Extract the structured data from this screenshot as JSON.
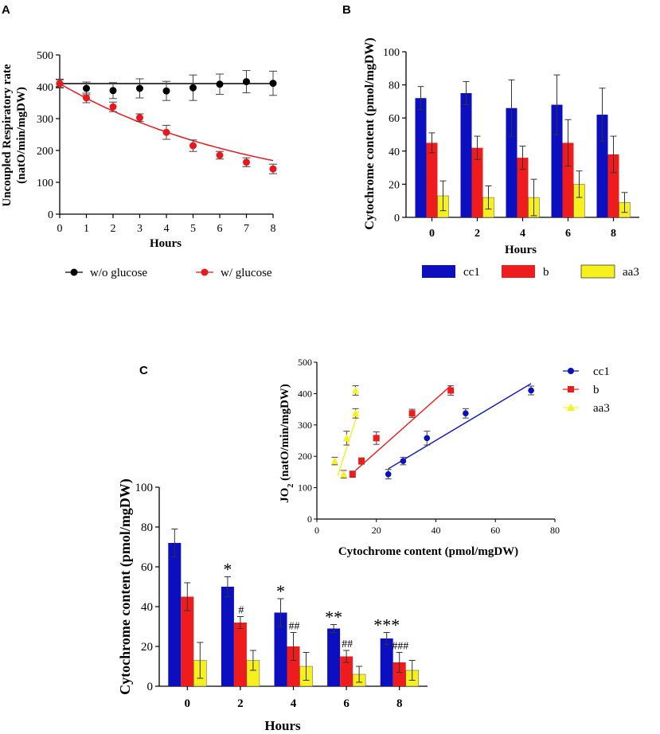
{
  "panels": {
    "a": "A",
    "b": "B",
    "c": "C"
  },
  "chart_data": [
    {
      "id": "A",
      "type": "line",
      "xlabel": "Hours",
      "ylabel_line1": "Uncoupled Respiratory rate",
      "ylabel_line2": "(natO/min/mgDW)",
      "xlim": [
        0,
        8
      ],
      "ylim": [
        0,
        500
      ],
      "xticks": [
        "0",
        "1",
        "2",
        "3",
        "4",
        "5",
        "6",
        "7",
        "8"
      ],
      "yticks": [
        "0",
        "100",
        "200",
        "300",
        "400",
        "500"
      ],
      "legend_position": "bottom",
      "series": [
        {
          "name": "w/o glucose",
          "color": "#000000",
          "x": [
            0,
            1,
            2,
            3,
            4,
            5,
            6,
            7,
            8
          ],
          "y": [
            410,
            395,
            388,
            395,
            387,
            397,
            408,
            416,
            411
          ],
          "err": [
            14,
            20,
            25,
            30,
            30,
            40,
            32,
            35,
            38
          ],
          "fit": "flat"
        },
        {
          "name": "w/ glucose",
          "color": "#e8181d",
          "x": [
            0,
            1,
            2,
            3,
            4,
            5,
            6,
            7,
            8
          ],
          "y": [
            410,
            365,
            337,
            303,
            257,
            215,
            185,
            163,
            142
          ],
          "err": [
            12,
            15,
            15,
            12,
            22,
            18,
            12,
            14,
            15
          ],
          "fit": "decay"
        }
      ]
    },
    {
      "id": "B",
      "type": "bar",
      "xlabel": "Hours",
      "ylabel": "Cytochrome content (pmol/mgDW)",
      "ylim": [
        0,
        100
      ],
      "categories": [
        "0",
        "2",
        "4",
        "6",
        "8"
      ],
      "yticks": [
        "0",
        "20",
        "40",
        "60",
        "80",
        "100"
      ],
      "legend_position": "bottom",
      "series": [
        {
          "name": "cc1",
          "color": "#0b0fbf",
          "values": [
            72,
            75,
            66,
            68,
            62
          ],
          "err": [
            7,
            7,
            17,
            18,
            16
          ]
        },
        {
          "name": "b",
          "color": "#ee1c1c",
          "values": [
            45,
            42,
            36,
            45,
            38
          ],
          "err": [
            6,
            7,
            7,
            14,
            11
          ]
        },
        {
          "name": "aa3",
          "color": "#f5f01e",
          "values": [
            13,
            12,
            12,
            20,
            9
          ],
          "err": [
            9,
            7,
            11,
            8,
            6
          ]
        }
      ]
    },
    {
      "id": "C",
      "type": "bar",
      "xlabel": "Hours",
      "ylabel": "Cytochrome content (pmol/mgDW)",
      "ylim": [
        0,
        100
      ],
      "categories": [
        "0",
        "2",
        "4",
        "6",
        "8"
      ],
      "yticks": [
        "0",
        "20",
        "40",
        "60",
        "80",
        "100"
      ],
      "series": [
        {
          "name": "cc1",
          "color": "#0b0fbf",
          "values": [
            72,
            50,
            37,
            29,
            24
          ],
          "err": [
            7,
            5,
            7,
            2,
            3
          ],
          "sig": [
            "",
            "*",
            "*",
            "**",
            "***"
          ]
        },
        {
          "name": "b",
          "color": "#ee1c1c",
          "values": [
            45,
            32,
            20,
            15,
            12
          ],
          "err": [
            7,
            3,
            7,
            3,
            5
          ],
          "sig": [
            "",
            "#",
            "##",
            "##",
            "###"
          ]
        },
        {
          "name": "aa3",
          "color": "#f5f01e",
          "values": [
            13,
            13,
            10,
            6,
            8
          ],
          "err": [
            9,
            5,
            7,
            4,
            5
          ],
          "sig": [
            "",
            "",
            "",
            "",
            ""
          ]
        }
      ]
    },
    {
      "id": "C-inset",
      "type": "scatter",
      "xlabel": "Cytochrome content (pmol/mgDW)",
      "ylabel_main": "JO",
      "ylabel_sub": "2",
      "ylabel_rest": " (natO/min/mgDW)",
      "xlim": [
        0,
        80
      ],
      "ylim": [
        0,
        500
      ],
      "xticks": [
        "0",
        "20",
        "40",
        "60",
        "80"
      ],
      "yticks": [
        "0",
        "100",
        "200",
        "300",
        "400",
        "500"
      ],
      "legend_position": "top-right",
      "series": [
        {
          "name": "cc1",
          "color": "#0b0fbf",
          "marker": "circle",
          "x": [
            24,
            29,
            37,
            50,
            72
          ],
          "y": [
            143,
            185,
            258,
            337,
            410
          ],
          "err": [
            15,
            12,
            22,
            15,
            14
          ],
          "fit": [
            [
              24,
              160
            ],
            [
              72,
              432
            ]
          ]
        },
        {
          "name": "b",
          "color": "#ee1c1c",
          "marker": "square",
          "x": [
            12,
            15,
            20,
            32,
            45
          ],
          "y": [
            143,
            185,
            258,
            337,
            410
          ],
          "err": [
            10,
            10,
            20,
            13,
            15
          ],
          "fit": [
            [
              13,
              155
            ],
            [
              45,
              425
            ]
          ]
        },
        {
          "name": "aa3",
          "color": "#f5f01e",
          "marker": "triangle",
          "x": [
            6,
            9,
            10,
            13,
            13
          ],
          "y": [
            185,
            143,
            258,
            337,
            410
          ],
          "err": [
            12,
            12,
            22,
            15,
            15
          ],
          "fit": [
            [
              7,
              138
            ],
            [
              14,
              345
            ]
          ]
        }
      ]
    }
  ]
}
